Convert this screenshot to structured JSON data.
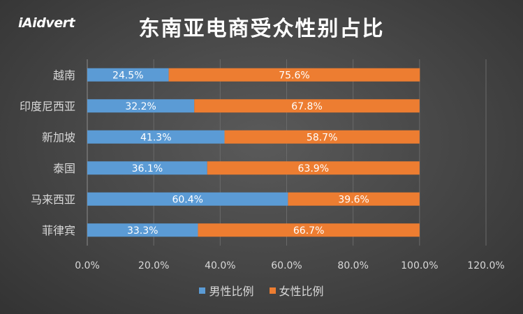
{
  "logo": "iAidvert",
  "chart_data": {
    "type": "bar",
    "orientation": "horizontal",
    "stacked": true,
    "title": "东南亚电商受众性别占比",
    "categories": [
      "越南",
      "印度尼西亚",
      "新加坡",
      "泰国",
      "马来西亚",
      "菲律宾"
    ],
    "series": [
      {
        "name": "男性比例",
        "values": [
          24.5,
          32.2,
          41.3,
          36.1,
          60.4,
          33.3
        ],
        "labels": [
          "24.5%",
          "32.2%",
          "41.3%",
          "36.1%",
          "60.4%",
          "33.3%"
        ],
        "color": "#5b9bd5"
      },
      {
        "name": "女性比例",
        "values": [
          75.6,
          67.8,
          58.7,
          63.9,
          39.6,
          66.7
        ],
        "labels": [
          "75.6%",
          "67.8%",
          "58.7%",
          "63.9%",
          "39.6%",
          "66.7%"
        ],
        "color": "#ed7d31"
      }
    ],
    "x_ticks": [
      "0.0%",
      "20.0%",
      "40.0%",
      "60.0%",
      "80.0%",
      "100.0%",
      "120.0%"
    ],
    "xlim": [
      0,
      120
    ],
    "grid": true,
    "legend_position": "bottom"
  }
}
